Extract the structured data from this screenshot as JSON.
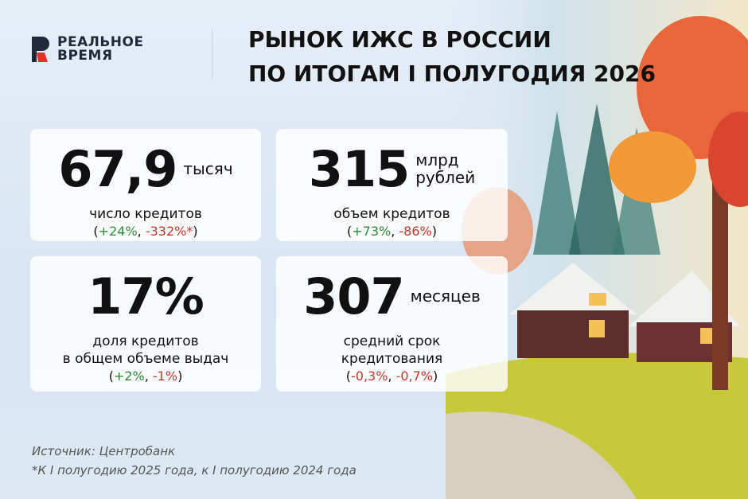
{
  "logo": {
    "lines": [
      "РЕАЛЬНОЕ",
      "ВРЕМЯ"
    ]
  },
  "header": {
    "title_lines": [
      "РЫНОК ИЖС В РОССИИ",
      "ПО ИТОГАМ I ПОЛУГОДИЯ 2026"
    ]
  },
  "cards": [
    {
      "value": "67,9",
      "unit": [
        "тысяч"
      ],
      "label": [
        "число кредитов"
      ],
      "change": "(+24%, -332%*)"
    },
    {
      "value": "315",
      "unit": [
        "млрд",
        "рублей"
      ],
      "label": [
        "объем кредитов"
      ],
      "change": "(+73%, -86%)"
    },
    {
      "value": "17%",
      "unit": [],
      "label": [
        "доля кредитов",
        "в общем объеме выдач"
      ],
      "change": "(+2%, -1%)"
    },
    {
      "value": "307",
      "unit": [
        "месяцев"
      ],
      "label": [
        "средний срок",
        "кредитования"
      ],
      "change": "(-0,3%, -0,7%)"
    }
  ],
  "footer": {
    "source": "Источник: Центробанк",
    "note": "*К I полугодию 2025 года, к I полугодию 2024 года"
  }
}
